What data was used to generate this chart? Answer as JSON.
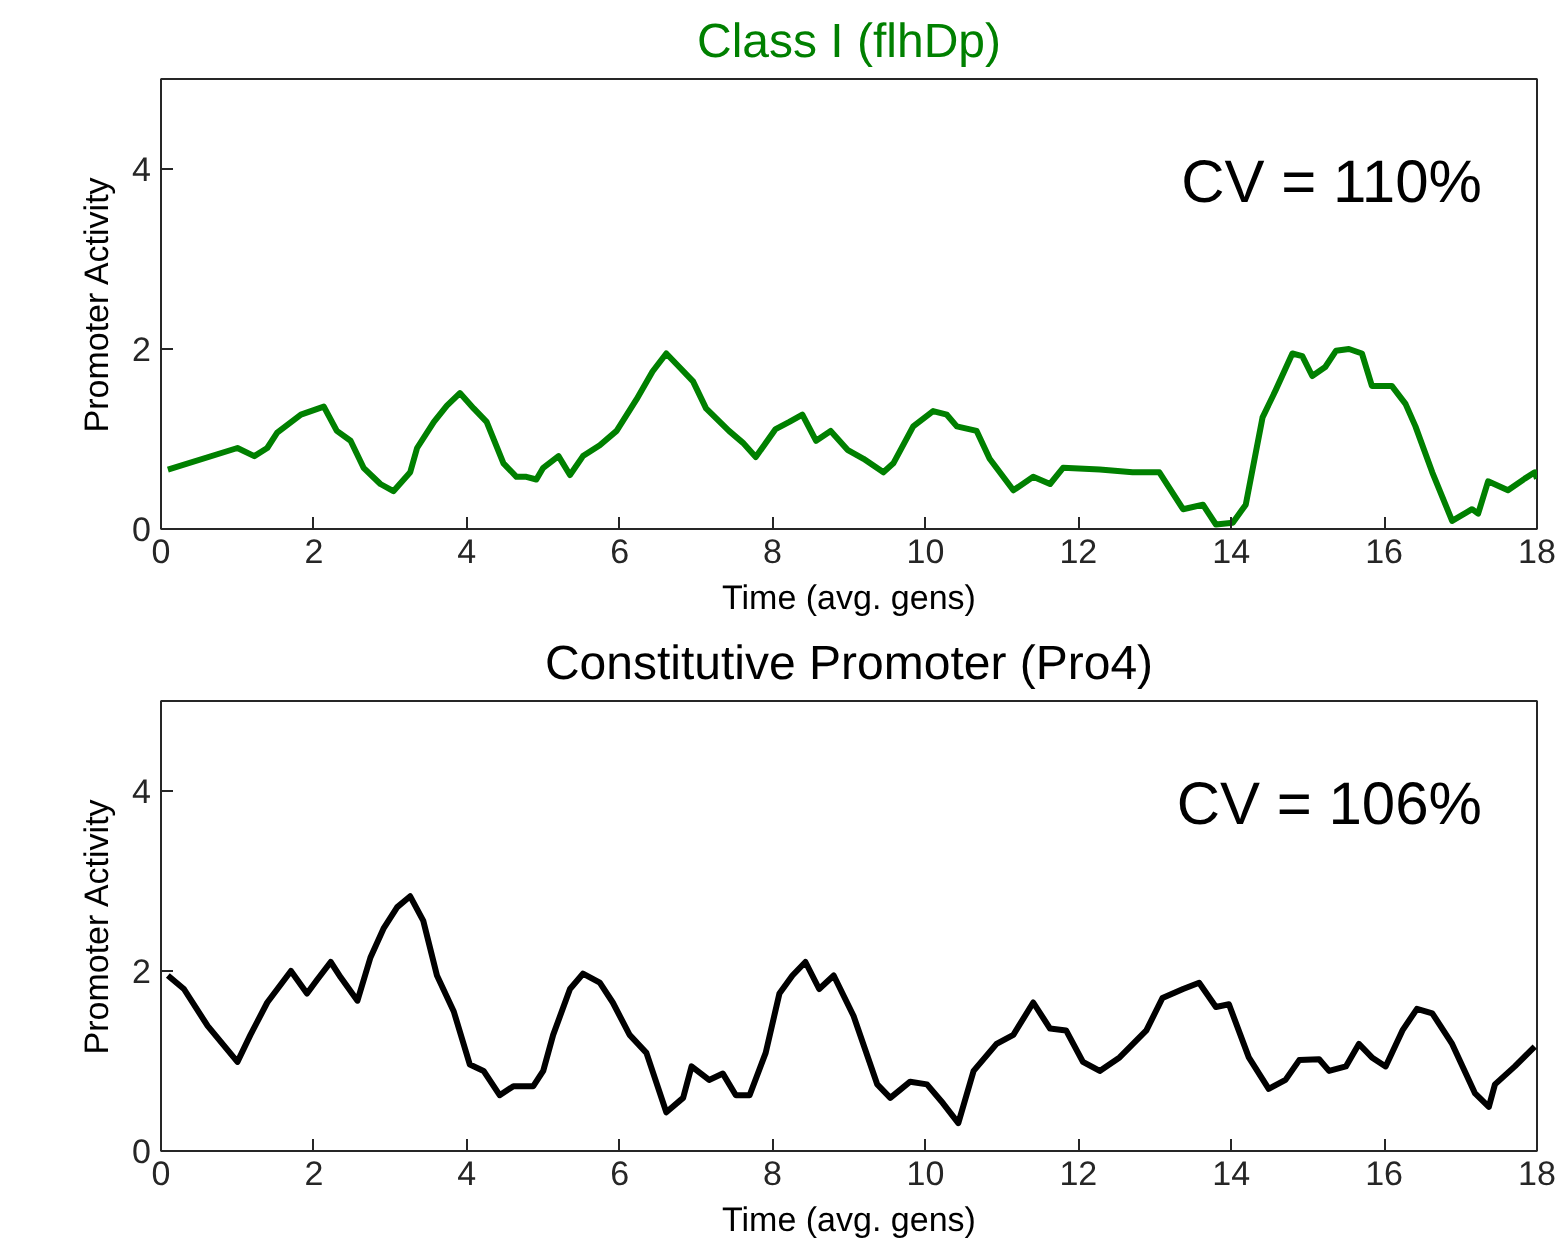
{
  "chart_data": [
    {
      "type": "line",
      "title": "Class I (flhDp)",
      "xlabel": "Time (avg. gens)",
      "ylabel": "Promoter Activity",
      "annotations": [
        "CV = 110%"
      ],
      "xlim": [
        0,
        18
      ],
      "ylim": [
        0,
        5
      ],
      "xticks": [
        0,
        2,
        4,
        6,
        8,
        10,
        12,
        14,
        16,
        18
      ],
      "yticks": [
        0,
        2,
        4
      ],
      "grid": false,
      "marker": "none",
      "line_style": "solid",
      "series": [
        {
          "color": "#008000",
          "x": [
            0.09,
            1.0,
            1.22,
            1.39,
            1.52,
            1.83,
            2.13,
            2.3,
            2.48,
            2.65,
            2.87,
            3.04,
            3.26,
            3.35,
            3.57,
            3.74,
            3.91,
            4.09,
            4.26,
            4.48,
            4.65,
            4.78,
            4.91,
            5.0,
            5.2,
            5.35,
            5.52,
            5.74,
            5.96,
            6.22,
            6.43,
            6.61,
            6.78,
            6.96,
            7.13,
            7.43,
            7.61,
            7.78,
            8.04,
            8.22,
            8.39,
            8.57,
            8.76,
            8.98,
            9.19,
            9.45,
            9.58,
            9.84,
            10.1,
            10.28,
            10.41,
            10.67,
            10.84,
            11.15,
            11.41,
            11.63,
            11.8,
            12.28,
            12.71,
            13.06,
            13.37,
            13.63,
            13.8,
            14.02,
            14.19,
            14.41,
            14.58,
            14.8,
            14.93,
            15.06,
            15.23,
            15.37,
            15.54,
            15.71,
            15.84,
            16.1,
            16.28,
            16.41,
            16.63,
            16.89,
            17.15,
            17.23,
            17.36,
            17.62,
            17.84,
            17.97,
            18.0
          ],
          "values": [
            0.66,
            0.9,
            0.81,
            0.9,
            1.07,
            1.27,
            1.36,
            1.09,
            0.98,
            0.68,
            0.5,
            0.42,
            0.63,
            0.9,
            1.19,
            1.37,
            1.51,
            1.34,
            1.19,
            0.73,
            0.58,
            0.58,
            0.55,
            0.68,
            0.81,
            0.6,
            0.81,
            0.93,
            1.09,
            1.44,
            1.75,
            1.95,
            1.8,
            1.64,
            1.34,
            1.09,
            0.96,
            0.8,
            1.11,
            1.19,
            1.27,
            0.98,
            1.09,
            0.88,
            0.78,
            0.63,
            0.73,
            1.14,
            1.31,
            1.27,
            1.14,
            1.09,
            0.78,
            0.43,
            0.58,
            0.5,
            0.68,
            0.66,
            0.63,
            0.63,
            0.22,
            0.27,
            0.05,
            0.07,
            0.27,
            1.24,
            1.54,
            1.95,
            1.92,
            1.7,
            1.8,
            1.98,
            2.0,
            1.95,
            1.59,
            1.59,
            1.39,
            1.14,
            0.63,
            0.09,
            0.22,
            0.17,
            0.53,
            0.43,
            0.56,
            0.63,
            0.56
          ]
        }
      ]
    },
    {
      "type": "line",
      "title": "Constitutive Promoter (Pro4)",
      "xlabel": "Time (avg. gens)",
      "ylabel": "Promoter Activity",
      "annotations": [
        "CV = 106%"
      ],
      "xlim": [
        0,
        18
      ],
      "ylim": [
        0,
        5
      ],
      "xticks": [
        0,
        2,
        4,
        6,
        8,
        10,
        12,
        14,
        16,
        18
      ],
      "yticks": [
        0,
        2,
        4
      ],
      "grid": false,
      "marker": "none",
      "line_style": "solid",
      "series": [
        {
          "color": "#000000",
          "x": [
            0.09,
            0.3,
            0.61,
            1.0,
            1.17,
            1.39,
            1.7,
            1.91,
            2.04,
            2.22,
            2.35,
            2.57,
            2.74,
            2.91,
            3.09,
            3.26,
            3.43,
            3.61,
            3.83,
            4.04,
            4.22,
            4.43,
            4.61,
            4.87,
            5.0,
            5.13,
            5.35,
            5.52,
            5.74,
            5.91,
            6.13,
            6.35,
            6.61,
            6.83,
            6.94,
            7.17,
            7.35,
            7.52,
            7.7,
            7.91,
            8.09,
            8.26,
            8.43,
            8.61,
            8.8,
            9.06,
            9.37,
            9.54,
            9.8,
            10.02,
            10.23,
            10.43,
            10.63,
            10.93,
            11.15,
            11.41,
            11.63,
            11.84,
            12.06,
            12.28,
            12.54,
            12.89,
            13.1,
            13.37,
            13.58,
            13.8,
            13.97,
            14.23,
            14.49,
            14.71,
            14.89,
            15.15,
            15.28,
            15.5,
            15.67,
            15.84,
            16.02,
            16.24,
            16.43,
            16.63,
            16.89,
            17.19,
            17.37,
            17.45,
            17.71,
            17.97
          ],
          "values": [
            1.95,
            1.8,
            1.39,
            0.99,
            1.29,
            1.65,
            2.0,
            1.75,
            1.9,
            2.1,
            1.93,
            1.67,
            2.15,
            2.47,
            2.71,
            2.83,
            2.56,
            1.95,
            1.55,
            0.96,
            0.89,
            0.62,
            0.72,
            0.72,
            0.89,
            1.29,
            1.8,
            1.97,
            1.87,
            1.65,
            1.29,
            1.09,
            0.43,
            0.59,
            0.94,
            0.79,
            0.86,
            0.62,
            0.62,
            1.09,
            1.75,
            1.95,
            2.1,
            1.8,
            1.95,
            1.5,
            0.74,
            0.59,
            0.77,
            0.74,
            0.53,
            0.31,
            0.89,
            1.19,
            1.29,
            1.65,
            1.36,
            1.34,
            0.99,
            0.89,
            1.04,
            1.34,
            1.7,
            1.8,
            1.87,
            1.6,
            1.63,
            1.04,
            0.69,
            0.79,
            1.01,
            1.02,
            0.89,
            0.94,
            1.19,
            1.04,
            0.94,
            1.34,
            1.58,
            1.53,
            1.19,
            0.64,
            0.49,
            0.74,
            0.94,
            1.16
          ]
        }
      ]
    }
  ]
}
